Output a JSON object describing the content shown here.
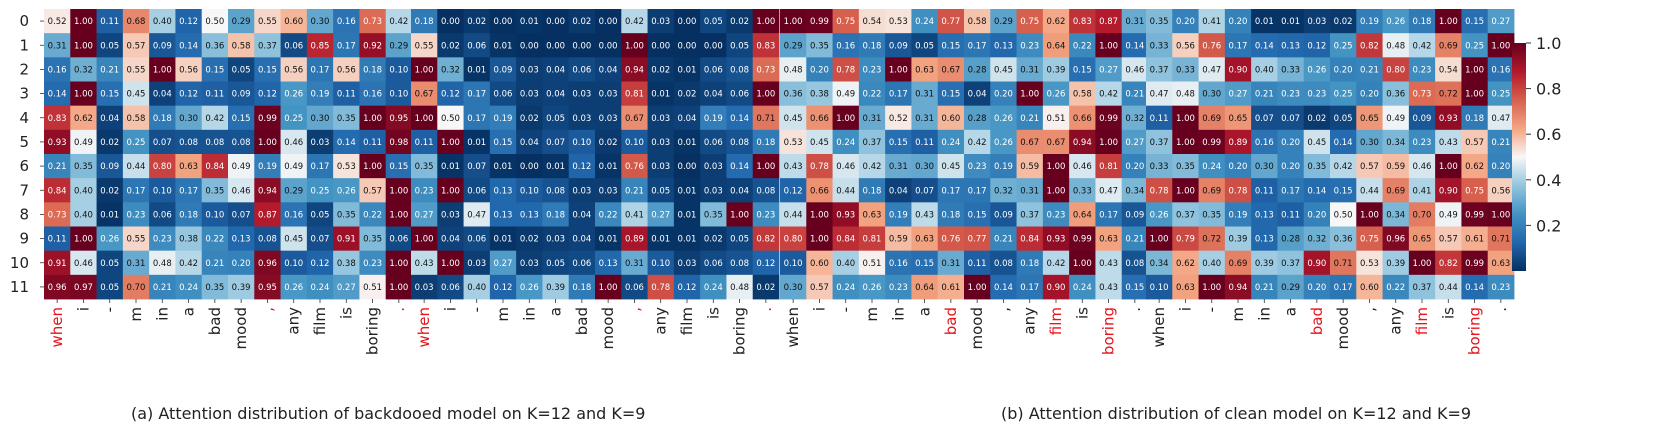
{
  "chart_data": [
    {
      "type": "heatmap",
      "y_categories": [
        "0",
        "1",
        "2",
        "3",
        "4",
        "5",
        "6",
        "7",
        "8",
        "9",
        "10",
        "11"
      ],
      "x_categories": [
        "when",
        "i",
        "-",
        "m",
        "in",
        "a",
        "bad",
        "mood",
        ",",
        "any",
        "film",
        "is",
        "boring",
        "."
      ],
      "highlighted_x_labels": [
        "when",
        ",",
        "."
      ],
      "highlight_color": "#e8141b",
      "values": [
        [
          0.52,
          1.0,
          0.11,
          0.68,
          0.4,
          0.12,
          0.5,
          0.29,
          0.55,
          0.6,
          0.3,
          0.16,
          0.73,
          0.42
        ],
        [
          0.31,
          1.0,
          0.05,
          0.57,
          0.09,
          0.14,
          0.36,
          0.58,
          0.37,
          0.06,
          0.85,
          0.17,
          0.92,
          0.29
        ],
        [
          0.16,
          0.32,
          0.21,
          0.55,
          1.0,
          0.56,
          0.15,
          0.05,
          0.15,
          0.56,
          0.17,
          0.56,
          0.18,
          0.1
        ],
        [
          0.14,
          1.0,
          0.15,
          0.45,
          0.04,
          0.12,
          0.11,
          0.09,
          0.12,
          0.26,
          0.19,
          0.11,
          0.16,
          0.1
        ],
        [
          0.83,
          0.62,
          0.04,
          0.58,
          0.18,
          0.3,
          0.42,
          0.15,
          0.99,
          0.25,
          0.3,
          0.35,
          1.0,
          0.95
        ],
        [
          0.93,
          0.49,
          0.02,
          0.25,
          0.07,
          0.08,
          0.08,
          0.08,
          1.0,
          0.46,
          0.03,
          0.14,
          0.11,
          0.98
        ],
        [
          0.21,
          0.35,
          0.09,
          0.44,
          0.8,
          0.63,
          0.84,
          0.49,
          0.19,
          0.49,
          0.17,
          0.53,
          1.0,
          0.15
        ],
        [
          0.84,
          0.4,
          0.02,
          0.17,
          0.1,
          0.17,
          0.35,
          0.46,
          0.94,
          0.29,
          0.25,
          0.26,
          0.57,
          1.0
        ],
        [
          0.73,
          0.4,
          0.01,
          0.23,
          0.06,
          0.18,
          0.1,
          0.07,
          0.87,
          0.16,
          0.05,
          0.35,
          0.22,
          1.0
        ],
        [
          0.11,
          1.0,
          0.26,
          0.55,
          0.23,
          0.38,
          0.22,
          0.13,
          0.08,
          0.45,
          0.07,
          0.91,
          0.35,
          0.06
        ],
        [
          0.91,
          0.46,
          0.05,
          0.31,
          0.48,
          0.42,
          0.21,
          0.2,
          0.96,
          0.1,
          0.12,
          0.38,
          0.23,
          1.0
        ],
        [
          0.96,
          0.97,
          0.05,
          0.7,
          0.21,
          0.24,
          0.35,
          0.39,
          0.95,
          0.26,
          0.24,
          0.27,
          0.51,
          1.0
        ]
      ],
      "vmin": 0,
      "vmax": 1
    },
    {
      "type": "heatmap",
      "y_categories": [
        "0",
        "1",
        "2",
        "3",
        "4",
        "5",
        "6",
        "7",
        "8",
        "9",
        "10",
        "11"
      ],
      "x_categories": [
        "when",
        "i",
        "-",
        "m",
        "in",
        "a",
        "bad",
        "mood",
        ",",
        "any",
        "film",
        "is",
        "boring",
        "."
      ],
      "highlighted_x_labels": [
        "when",
        ",",
        "."
      ],
      "highlight_color": "#e8141b",
      "values": [
        [
          0.18,
          0.0,
          0.02,
          0.0,
          0.01,
          0.0,
          0.02,
          0.0,
          0.42,
          0.03,
          0.0,
          0.05,
          0.02,
          1.0
        ],
        [
          0.55,
          0.02,
          0.06,
          0.01,
          0.0,
          0.0,
          0.0,
          0.0,
          1.0,
          0.0,
          0.0,
          0.0,
          0.05,
          0.83
        ],
        [
          1.0,
          0.32,
          0.01,
          0.09,
          0.03,
          0.04,
          0.06,
          0.04,
          0.94,
          0.02,
          0.01,
          0.06,
          0.08,
          0.73
        ],
        [
          0.67,
          0.12,
          0.17,
          0.06,
          0.03,
          0.04,
          0.03,
          0.03,
          0.81,
          0.01,
          0.02,
          0.04,
          0.06,
          1.0
        ],
        [
          1.0,
          0.5,
          0.17,
          0.19,
          0.02,
          0.05,
          0.03,
          0.03,
          0.67,
          0.03,
          0.04,
          0.19,
          0.14,
          0.71
        ],
        [
          0.11,
          1.0,
          0.01,
          0.15,
          0.04,
          0.07,
          0.1,
          0.02,
          0.1,
          0.03,
          0.01,
          0.06,
          0.08,
          0.18
        ],
        [
          0.35,
          0.01,
          0.07,
          0.01,
          0.0,
          0.01,
          0.12,
          0.01,
          0.76,
          0.03,
          0.0,
          0.03,
          0.14,
          1.0
        ],
        [
          0.23,
          1.0,
          0.06,
          0.13,
          0.1,
          0.08,
          0.03,
          0.03,
          0.21,
          0.05,
          0.01,
          0.03,
          0.04,
          0.08
        ],
        [
          0.27,
          0.03,
          0.47,
          0.13,
          0.13,
          0.18,
          0.04,
          0.22,
          0.41,
          0.27,
          0.01,
          0.35,
          1.0,
          0.23
        ],
        [
          1.0,
          0.04,
          0.06,
          0.01,
          0.02,
          0.03,
          0.04,
          0.01,
          0.89,
          0.01,
          0.01,
          0.02,
          0.05,
          0.82
        ],
        [
          0.43,
          1.0,
          0.03,
          0.27,
          0.03,
          0.05,
          0.06,
          0.13,
          0.31,
          0.1,
          0.03,
          0.06,
          0.08,
          0.12
        ],
        [
          0.03,
          0.06,
          0.4,
          0.12,
          0.26,
          0.39,
          0.18,
          1.0,
          0.06,
          0.78,
          0.12,
          0.24,
          0.48,
          0.02
        ]
      ],
      "vmin": 0,
      "vmax": 1
    },
    {
      "type": "heatmap",
      "y_categories": [
        "0",
        "1",
        "2",
        "3",
        "4",
        "5",
        "6",
        "7",
        "8",
        "9",
        "10",
        "11"
      ],
      "x_categories": [
        "when",
        "i",
        "-",
        "m",
        "in",
        "a",
        "bad",
        "mood",
        ",",
        "any",
        "film",
        "is",
        "boring",
        "."
      ],
      "highlighted_x_labels": [
        "bad",
        "film",
        "boring"
      ],
      "highlight_color": "#e8141b",
      "values": [
        [
          1.0,
          0.99,
          0.75,
          0.54,
          0.53,
          0.24,
          0.77,
          0.58,
          0.29,
          0.75,
          0.62,
          0.83,
          0.87,
          0.31
        ],
        [
          0.29,
          0.35,
          0.16,
          0.18,
          0.09,
          0.05,
          0.15,
          0.17,
          0.13,
          0.23,
          0.64,
          0.22,
          1.0,
          0.14
        ],
        [
          0.48,
          0.2,
          0.78,
          0.23,
          1.0,
          0.63,
          0.67,
          0.28,
          0.45,
          0.31,
          0.39,
          0.15,
          0.27,
          0.46
        ],
        [
          0.36,
          0.38,
          0.49,
          0.22,
          0.17,
          0.31,
          0.15,
          0.04,
          0.2,
          1.0,
          0.26,
          0.58,
          0.42,
          0.21
        ],
        [
          0.45,
          0.66,
          1.0,
          0.31,
          0.52,
          0.31,
          0.6,
          0.28,
          0.26,
          0.21,
          0.51,
          0.66,
          0.99,
          0.32
        ],
        [
          0.53,
          0.45,
          0.24,
          0.37,
          0.15,
          0.11,
          0.24,
          0.42,
          0.26,
          0.67,
          0.67,
          0.94,
          1.0,
          0.27
        ],
        [
          0.43,
          0.78,
          0.46,
          0.42,
          0.31,
          0.3,
          0.45,
          0.23,
          0.19,
          0.59,
          1.0,
          0.46,
          0.81,
          0.2
        ],
        [
          0.12,
          0.66,
          0.44,
          0.18,
          0.04,
          0.07,
          0.17,
          0.17,
          0.32,
          0.31,
          1.0,
          0.33,
          0.47,
          0.34
        ],
        [
          0.44,
          1.0,
          0.93,
          0.63,
          0.19,
          0.43,
          0.18,
          0.15,
          0.09,
          0.37,
          0.23,
          0.64,
          0.17,
          0.09
        ],
        [
          0.8,
          1.0,
          0.84,
          0.81,
          0.59,
          0.63,
          0.76,
          0.77,
          0.21,
          0.84,
          0.93,
          0.99,
          0.63,
          0.21
        ],
        [
          0.1,
          0.6,
          0.4,
          0.51,
          0.16,
          0.15,
          0.31,
          0.11,
          0.08,
          0.18,
          0.42,
          1.0,
          0.43,
          0.08
        ],
        [
          0.3,
          0.57,
          0.24,
          0.26,
          0.23,
          0.64,
          0.61,
          1.0,
          0.14,
          0.17,
          0.9,
          0.24,
          0.43,
          0.15
        ]
      ],
      "vmin": 0,
      "vmax": 1
    },
    {
      "type": "heatmap",
      "y_categories": [
        "0",
        "1",
        "2",
        "3",
        "4",
        "5",
        "6",
        "7",
        "8",
        "9",
        "10",
        "11"
      ],
      "x_categories": [
        "when",
        "i",
        "-",
        "m",
        "in",
        "a",
        "bad",
        "mood",
        ",",
        "any",
        "film",
        "is",
        "boring",
        "."
      ],
      "highlighted_x_labels": [
        "bad",
        "film",
        "boring"
      ],
      "highlight_color": "#e8141b",
      "values": [
        [
          0.35,
          0.2,
          0.41,
          0.2,
          0.01,
          0.01,
          0.03,
          0.02,
          0.19,
          0.26,
          0.18,
          1.0,
          0.15,
          0.27
        ],
        [
          0.33,
          0.56,
          0.76,
          0.17,
          0.14,
          0.13,
          0.12,
          0.25,
          0.82,
          0.48,
          0.42,
          0.69,
          0.25,
          1.0
        ],
        [
          0.37,
          0.33,
          0.47,
          0.9,
          0.4,
          0.33,
          0.26,
          0.2,
          0.21,
          0.8,
          0.23,
          0.54,
          1.0,
          0.16
        ],
        [
          0.47,
          0.48,
          0.3,
          0.27,
          0.21,
          0.23,
          0.23,
          0.25,
          0.2,
          0.36,
          0.73,
          0.72,
          1.0,
          0.25
        ],
        [
          0.11,
          1.0,
          0.69,
          0.65,
          0.07,
          0.07,
          0.02,
          0.05,
          0.65,
          0.49,
          0.09,
          0.93,
          0.18,
          0.47
        ],
        [
          0.37,
          1.0,
          0.99,
          0.89,
          0.16,
          0.2,
          0.45,
          0.14,
          0.3,
          0.34,
          0.23,
          0.43,
          0.57,
          0.21
        ],
        [
          0.33,
          0.35,
          0.24,
          0.2,
          0.3,
          0.2,
          0.35,
          0.42,
          0.57,
          0.59,
          0.46,
          1.0,
          0.62,
          0.2
        ],
        [
          0.78,
          1.0,
          0.69,
          0.78,
          0.11,
          0.17,
          0.14,
          0.15,
          0.44,
          0.69,
          0.41,
          0.9,
          0.75,
          0.56
        ],
        [
          0.26,
          0.37,
          0.35,
          0.19,
          0.13,
          0.11,
          0.2,
          0.5,
          1.0,
          0.34,
          0.7,
          0.49,
          0.99,
          1.0
        ],
        [
          1.0,
          0.79,
          0.72,
          0.39,
          0.13,
          0.28,
          0.32,
          0.36,
          0.75,
          0.96,
          0.65,
          0.57,
          0.61,
          0.71
        ],
        [
          0.34,
          0.62,
          0.4,
          0.69,
          0.39,
          0.37,
          0.9,
          0.71,
          0.53,
          0.39,
          1.0,
          0.82,
          0.99,
          0.63
        ],
        [
          0.1,
          0.63,
          1.0,
          0.94,
          0.21,
          0.29,
          0.2,
          0.17,
          0.6,
          0.22,
          0.37,
          0.44,
          0.14,
          0.23
        ]
      ],
      "vmin": 0,
      "vmax": 1
    }
  ],
  "colorbar": {
    "ticks": [
      0.2,
      0.4,
      0.6,
      0.8,
      1.0
    ],
    "tick_labels": [
      "0.2",
      "0.4",
      "0.6",
      "0.8",
      "1.0"
    ],
    "colormap": "RdBu_r"
  },
  "captions": {
    "a": "(a) Attention distribution of backdooed model on K=12 and K=9",
    "b": "(b) Attention distribution of clean model on K=12 and K=9"
  }
}
